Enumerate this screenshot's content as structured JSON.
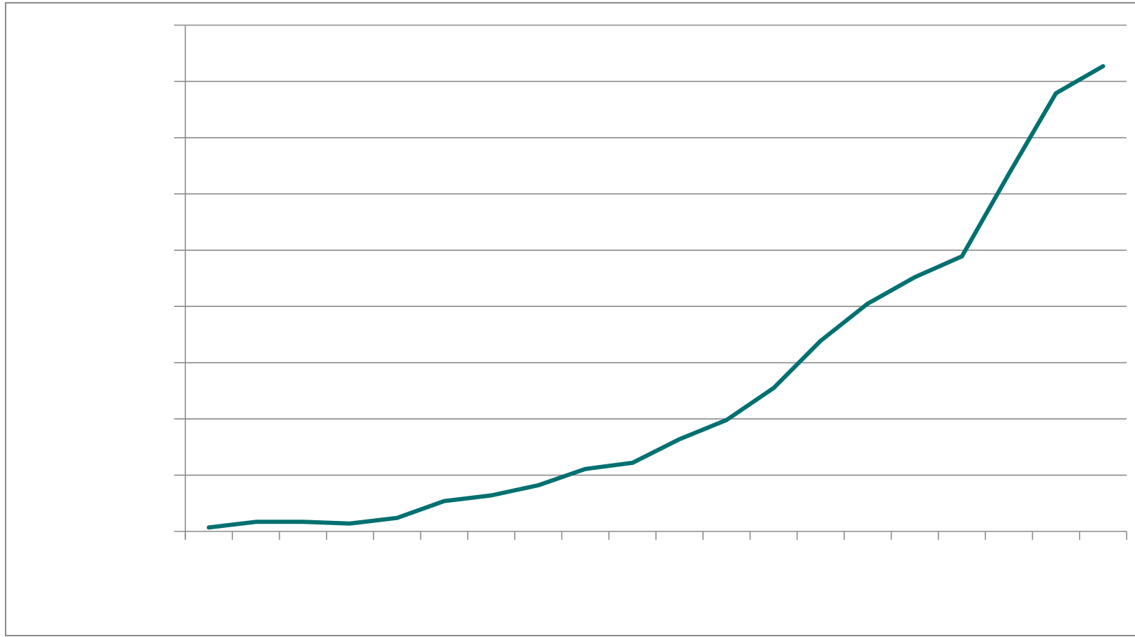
{
  "chart_data": {
    "type": "line",
    "title": "",
    "xlabel": "",
    "ylabel": "",
    "x": [
      1,
      2,
      3,
      4,
      5,
      6,
      7,
      8,
      9,
      10,
      11,
      12,
      13,
      14,
      15,
      16,
      17,
      18,
      19,
      20
    ],
    "xlim": [
      0.5,
      20.5
    ],
    "ylim": [
      0,
      9
    ],
    "y_gridlines": [
      0,
      1,
      2,
      3,
      4,
      5,
      6,
      7,
      8,
      9
    ],
    "series": [
      {
        "values": [
          0.07,
          0.17,
          0.17,
          0.14,
          0.24,
          0.54,
          0.64,
          0.82,
          1.11,
          1.22,
          1.64,
          1.98,
          2.55,
          3.39,
          4.05,
          4.52,
          4.89,
          6.36,
          7.79,
          8.27
        ],
        "color": "#007070"
      }
    ],
    "grid": true,
    "legend": "none",
    "gridline_color": "#8a8a8a"
  }
}
